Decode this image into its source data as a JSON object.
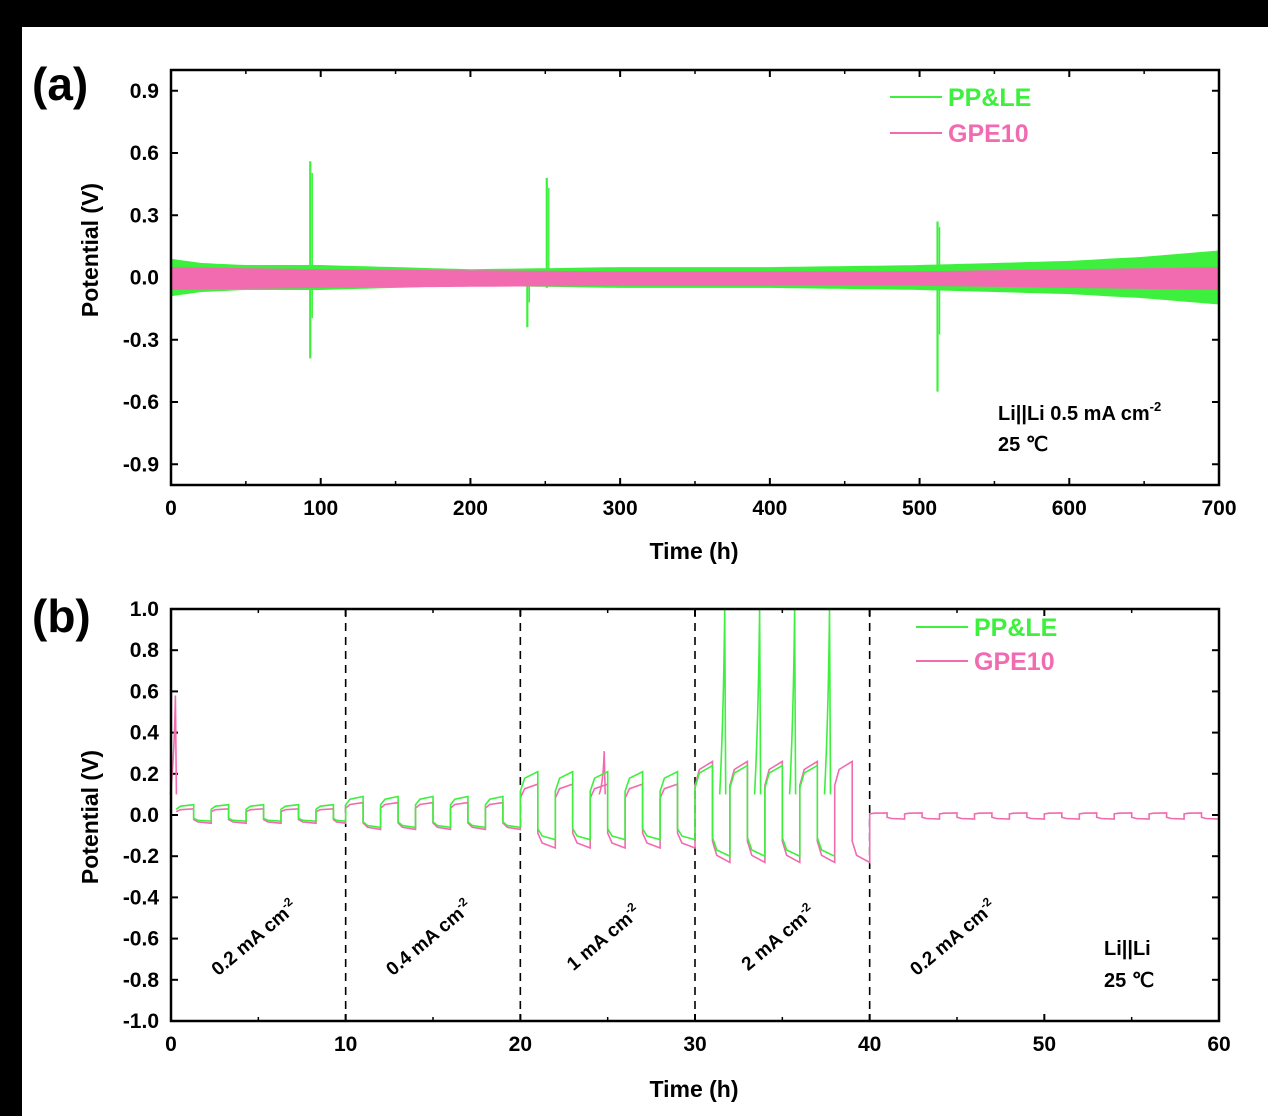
{
  "colors": {
    "PP&LE": "#3df03d",
    "GPE10": "#f26ab0",
    "background": "#000000",
    "panel": "#ffffff"
  },
  "chart_data": [
    {
      "panel_label": "(a)",
      "type": "line",
      "xlabel": "Time (h)",
      "ylabel": "Potential (V)",
      "xlim": [
        0,
        700
      ],
      "ylim": [
        -1.0,
        1.0
      ],
      "xticks": [
        0,
        100,
        200,
        300,
        400,
        500,
        600,
        700
      ],
      "yticks": [
        -0.9,
        -0.6,
        -0.3,
        0.0,
        0.3,
        0.6,
        0.9
      ],
      "xtick_labels": [
        "0",
        "100",
        "200",
        "300",
        "400",
        "500",
        "600",
        "700"
      ],
      "ytick_labels": [
        "-0.9",
        "-0.6",
        "-0.3",
        "0.0",
        "0.3",
        "0.6",
        "0.9"
      ],
      "legend_position": "top-right",
      "annotations": [
        "Li||Li  0.5 mA cm",
        "-2",
        "25 ℃"
      ],
      "series": [
        {
          "name": "PP&LE",
          "envelope": {
            "x": [
              0,
              20,
              50,
              100,
              200,
              300,
              400,
              500,
              600,
              650,
              700
            ],
            "upper": [
              0.09,
              0.07,
              0.06,
              0.06,
              0.04,
              0.05,
              0.05,
              0.06,
              0.08,
              0.1,
              0.13
            ],
            "lower": [
              -0.09,
              -0.07,
              -0.06,
              -0.06,
              -0.04,
              -0.05,
              -0.05,
              -0.06,
              -0.08,
              -0.1,
              -0.13
            ]
          },
          "spikes": [
            {
              "x": 93,
              "max": 0.56,
              "min": -0.39
            },
            {
              "x": 238,
              "max": 0.03,
              "min": -0.24
            },
            {
              "x": 251,
              "max": 0.48,
              "min": -0.05
            },
            {
              "x": 512,
              "max": 0.27,
              "min": -0.55
            }
          ]
        },
        {
          "name": "GPE10",
          "envelope": {
            "x": [
              0,
              100,
              300,
              500,
              700
            ],
            "upper": [
              0.05,
              0.04,
              0.03,
              0.03,
              0.05
            ],
            "lower": [
              -0.06,
              -0.05,
              -0.04,
              -0.04,
              -0.06
            ]
          }
        }
      ]
    },
    {
      "panel_label": "(b)",
      "type": "line",
      "xlabel": "Time (h)",
      "ylabel": "Potential (V)",
      "xlim": [
        0,
        60
      ],
      "ylim": [
        -1.0,
        1.0
      ],
      "xticks": [
        0,
        10,
        20,
        30,
        40,
        50,
        60
      ],
      "yticks": [
        -1.0,
        -0.8,
        -0.6,
        -0.4,
        -0.2,
        0.0,
        0.2,
        0.4,
        0.6,
        0.8,
        1.0
      ],
      "xtick_labels": [
        "0",
        "10",
        "20",
        "30",
        "40",
        "50",
        "60"
      ],
      "ytick_labels": [
        "-1.0",
        "-0.8",
        "-0.6",
        "-0.4",
        "-0.2",
        "0.0",
        "0.2",
        "0.4",
        "0.6",
        "0.8",
        "1.0"
      ],
      "legend_position": "top-right",
      "segment_dividers": [
        10,
        20,
        30,
        40
      ],
      "rate_labels": [
        {
          "text": "0.2 mA cm",
          "sup": "-2",
          "x": 5
        },
        {
          "text": "0.4 mA cm",
          "sup": "-2",
          "x": 15
        },
        {
          "text": "1 mA cm",
          "sup": "-2",
          "x": 25
        },
        {
          "text": "2 mA cm",
          "sup": "-2",
          "x": 35
        },
        {
          "text": "0.2 mA cm",
          "sup": "-2",
          "x": 45
        }
      ],
      "annotations": [
        "Li||Li",
        "25 ℃"
      ],
      "series": [
        {
          "name": "PP&LE",
          "segments": [
            {
              "x0": 0.3,
              "x1": 10,
              "high": 0.05,
              "low": -0.03
            },
            {
              "x0": 10,
              "x1": 20,
              "high": 0.09,
              "low": -0.06
            },
            {
              "x0": 20,
              "x1": 30,
              "high": 0.21,
              "low": -0.12
            },
            {
              "x0": 30,
              "x1": 38,
              "high": 0.24,
              "low": -0.2
            }
          ],
          "spikes": [
            {
              "x": 31.7,
              "max": 1.0
            },
            {
              "x": 33.7,
              "max": 1.0
            },
            {
              "x": 35.7,
              "max": 1.0
            },
            {
              "x": 37.7,
              "max": 1.0
            }
          ]
        },
        {
          "name": "GPE10",
          "segments": [
            {
              "x0": 0.3,
              "x1": 10,
              "high": 0.03,
              "low": -0.04
            },
            {
              "x0": 10,
              "x1": 20,
              "high": 0.06,
              "low": -0.07
            },
            {
              "x0": 20,
              "x1": 30,
              "high": 0.15,
              "low": -0.16
            },
            {
              "x0": 30,
              "x1": 40,
              "high": 0.26,
              "low": -0.23
            },
            {
              "x0": 40,
              "x1": 60,
              "high": 0.01,
              "low": -0.02
            }
          ],
          "spikes": [
            {
              "x": 0.25,
              "max": 0.58
            },
            {
              "x": 24.8,
              "max": 0.31
            }
          ]
        }
      ]
    }
  ]
}
